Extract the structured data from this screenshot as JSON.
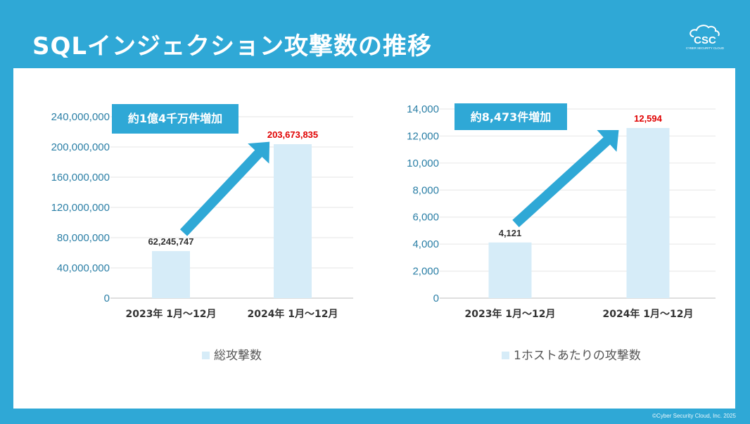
{
  "title": "SQLインジェクション攻撃数の推移",
  "logo": {
    "text": "CSC",
    "subtext": "CYBER SECURITY CLOUD"
  },
  "copyright": "©Cyber Security Cloud, Inc. 2025",
  "colors": {
    "frame": "#2fa8d6",
    "bar": "#d6ecf8",
    "arrow": "#2fa8d6",
    "callout": "#2fa8d6",
    "highlight": "#e00000",
    "tick": "#2b7fa6",
    "grid": "#e6e6e6"
  },
  "chart_data": [
    {
      "type": "bar",
      "title": "",
      "categories": [
        "2023年  1月～12月",
        "2024年 1月～12月"
      ],
      "series": [
        {
          "name": "総攻撃数",
          "values": [
            62245747,
            203673835
          ]
        }
      ],
      "data_labels": [
        "62,245,747",
        "203,673,835"
      ],
      "highlight_index": 1,
      "ylim": [
        0,
        240000000
      ],
      "yticks": [
        0,
        40000000,
        80000000,
        120000000,
        160000000,
        200000000,
        240000000
      ],
      "ytick_labels": [
        "0",
        "40,000,000",
        "80,000,000",
        "120,000,000",
        "160,000,000",
        "200,000,000",
        "240,000,000"
      ],
      "callout": "約1億4千万件増加",
      "legend": "総攻撃数",
      "xlabel": "",
      "ylabel": "",
      "grid": true
    },
    {
      "type": "bar",
      "title": "",
      "categories": [
        "2023年  1月～12月",
        "2024年 1月～12月"
      ],
      "series": [
        {
          "name": "1ホストあたりの攻撃数",
          "values": [
            4121,
            12594
          ]
        }
      ],
      "data_labels": [
        "4,121",
        "12,594"
      ],
      "highlight_index": 1,
      "ylim": [
        0,
        14000
      ],
      "yticks": [
        0,
        2000,
        4000,
        6000,
        8000,
        10000,
        12000,
        14000
      ],
      "ytick_labels": [
        "0",
        "2,000",
        "4,000",
        "6,000",
        "8,000",
        "10,000",
        "12,000",
        "14,000"
      ],
      "callout": "約8,473件増加",
      "legend": "1ホストあたりの攻撃数",
      "xlabel": "",
      "ylabel": "",
      "grid": true
    }
  ]
}
